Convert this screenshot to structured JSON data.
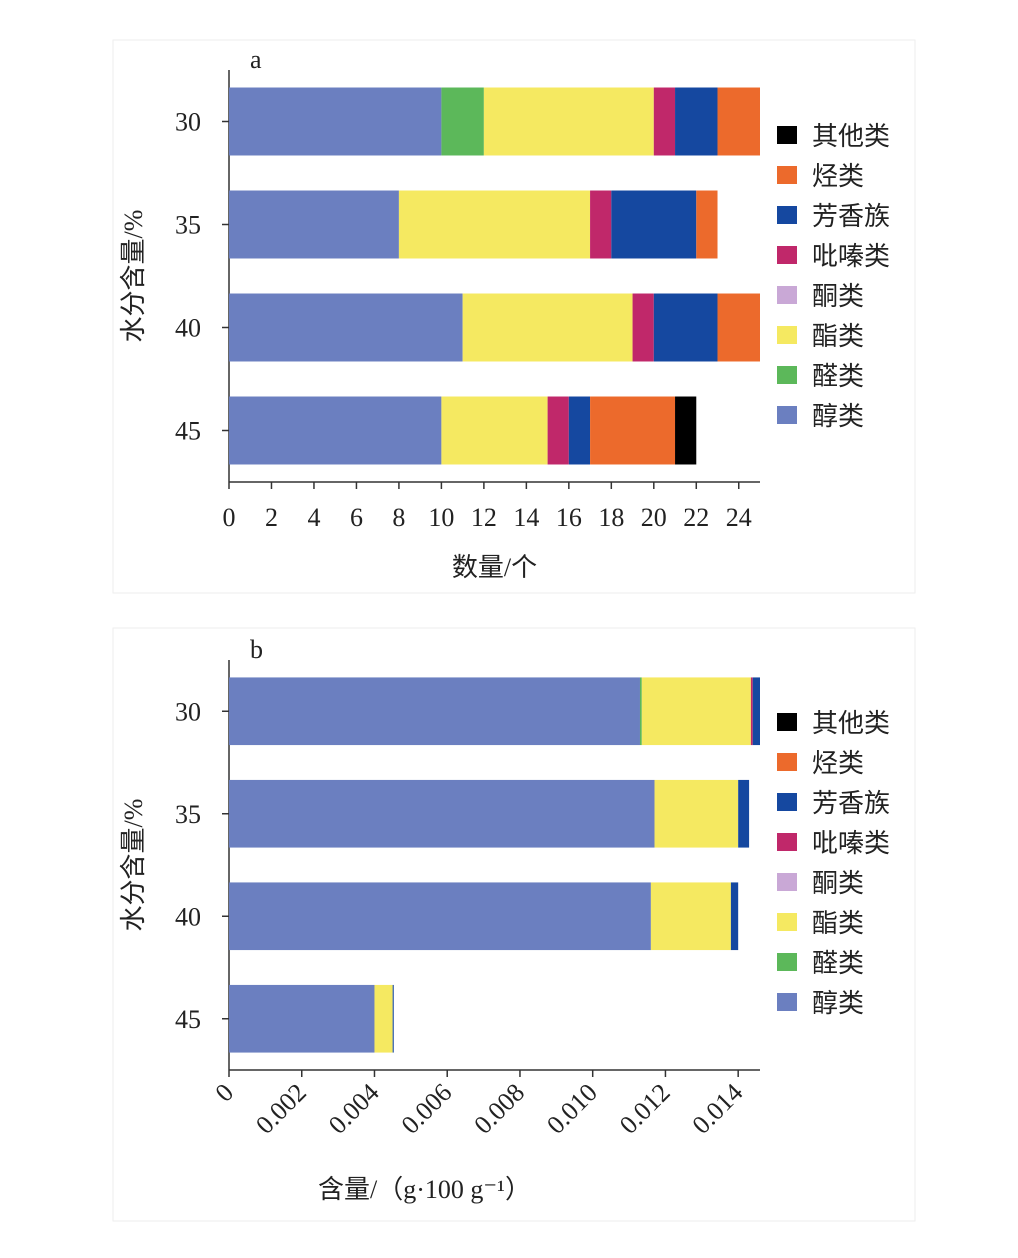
{
  "chart_data": [
    {
      "type": "bar",
      "orientation": "horizontal",
      "stacked": true,
      "panel_label": "a",
      "x_label": "数量/个",
      "y_label": "水分含量/%",
      "categories": [
        "30",
        "35",
        "40",
        "45"
      ],
      "series": [
        {
          "name": "醇类",
          "color": "#6b7fc0",
          "values": [
            10,
            8,
            11,
            10
          ]
        },
        {
          "name": "醛类",
          "color": "#5cb85a",
          "values": [
            2,
            0,
            0,
            0
          ]
        },
        {
          "name": "酯类",
          "color": "#f5e961",
          "values": [
            8,
            9,
            8,
            5
          ]
        },
        {
          "name": "酮类",
          "color": "#c9a8d6",
          "values": [
            0,
            0,
            0,
            0
          ]
        },
        {
          "name": "吡嗪类",
          "color": "#c0286a",
          "values": [
            1,
            1,
            1,
            1
          ]
        },
        {
          "name": "芳香族",
          "color": "#1548a0",
          "values": [
            2,
            4,
            3,
            1
          ]
        },
        {
          "name": "烃类",
          "color": "#ec6a2c",
          "values": [
            2,
            1,
            2,
            4
          ]
        },
        {
          "name": "其他类",
          "color": "#000000",
          "values": [
            0,
            0,
            0,
            1
          ]
        }
      ],
      "xlim": [
        0,
        25
      ],
      "xticks": [
        0,
        2,
        4,
        6,
        8,
        10,
        12,
        14,
        16,
        18,
        20,
        22,
        24
      ],
      "xtick_rotation": 0
    },
    {
      "type": "bar",
      "orientation": "horizontal",
      "stacked": true,
      "panel_label": "b",
      "x_label": "含量/（g·100 g⁻¹）",
      "y_label": "水分含量/%",
      "categories": [
        "30",
        "35",
        "40",
        "45"
      ],
      "series": [
        {
          "name": "醇类",
          "color": "#6b7fc0",
          "values": [
            0.0113,
            0.0117,
            0.0116,
            0.004
          ]
        },
        {
          "name": "醛类",
          "color": "#5cb85a",
          "values": [
            5e-05,
            0,
            0,
            0
          ]
        },
        {
          "name": "酯类",
          "color": "#f5e961",
          "values": [
            0.003,
            0.0023,
            0.0022,
            0.0005
          ]
        },
        {
          "name": "酮类",
          "color": "#c9a8d6",
          "values": [
            0,
            0,
            0,
            0
          ]
        },
        {
          "name": "吡嗪类",
          "color": "#c0286a",
          "values": [
            5e-05,
            0,
            0,
            0
          ]
        },
        {
          "name": "芳香族",
          "color": "#1548a0",
          "values": [
            0.0002,
            0.0003,
            0.0002,
            3e-05
          ]
        },
        {
          "name": "烃类",
          "color": "#ec6a2c",
          "values": [
            0,
            0,
            0,
            0
          ]
        },
        {
          "name": "其他类",
          "color": "#000000",
          "values": [
            0,
            0,
            0,
            0
          ]
        }
      ],
      "xlim": [
        0,
        0.0146
      ],
      "xticks": [
        0,
        0.002,
        0.004,
        0.006,
        0.008,
        {
          "value": 0.01,
          "label": "0.010"
        },
        0.012,
        0.014
      ],
      "xtick_rotation": -45
    }
  ]
}
